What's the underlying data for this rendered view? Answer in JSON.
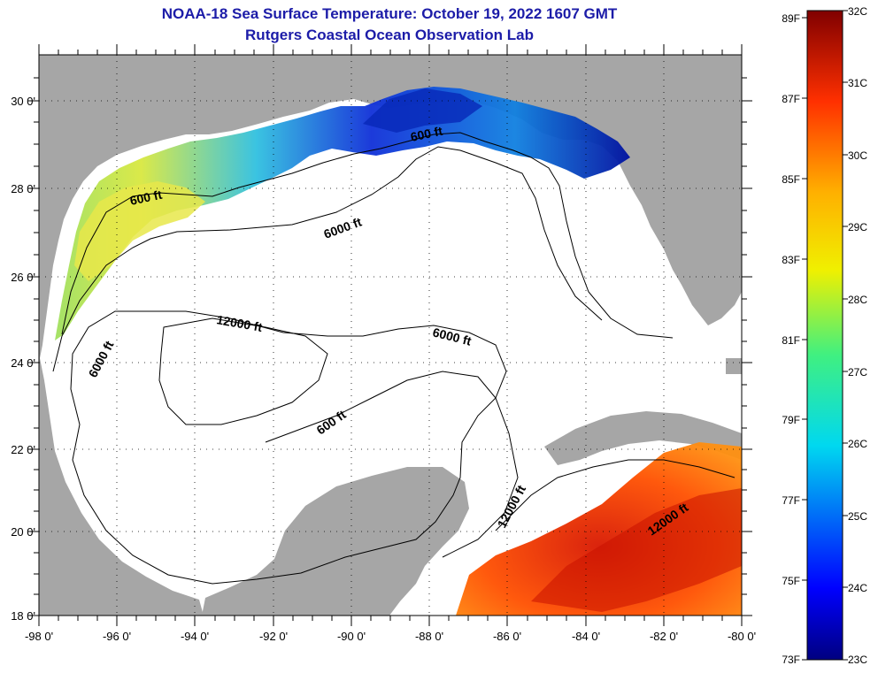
{
  "title": "NOAA-18 Sea Surface Temperature:  October 19, 2022 1607 GMT",
  "subtitle": "Rutgers Coastal Ocean Observation Lab",
  "map": {
    "lon_range": [
      -98,
      -80
    ],
    "lat_range": [
      18,
      31
    ],
    "x_ticks": [
      "-98 0'",
      "-96 0'",
      "-94 0'",
      "-92 0'",
      "-90 0'",
      "-88 0'",
      "-86 0'",
      "-84 0'",
      "-82 0'",
      "-80 0'"
    ],
    "y_ticks": [
      "30 0'",
      "28 0'",
      "26 0'",
      "24 0'",
      "22 0'",
      "20 0'",
      "18 0'"
    ],
    "contour_labels": [
      "600 ft",
      "600 ft",
      "6000 ft",
      "6000 ft",
      "6000 ft",
      "12000 ft",
      "600 ft",
      "12000 ft",
      "12000 ft"
    ]
  },
  "colorbar": {
    "f_labels": [
      "89F",
      "87F",
      "85F",
      "83F",
      "81F",
      "79F",
      "77F",
      "75F",
      "73F"
    ],
    "c_labels": [
      "32C",
      "31C",
      "30C",
      "29C",
      "28C",
      "27C",
      "26C",
      "25C",
      "24C",
      "23C"
    ],
    "min_c": 23,
    "max_c": 32
  },
  "colors": {
    "land": "#a6a6a6",
    "ocean": "#ffffff",
    "title": "#1c1ca8"
  }
}
